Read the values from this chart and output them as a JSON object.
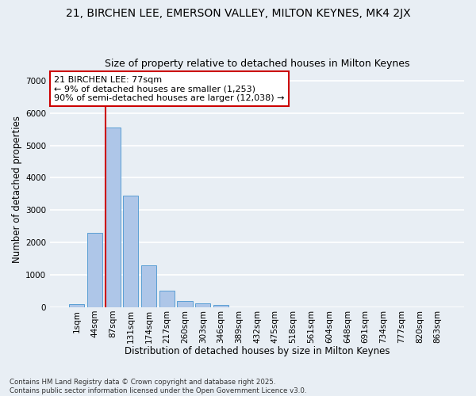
{
  "title": "21, BIRCHEN LEE, EMERSON VALLEY, MILTON KEYNES, MK4 2JX",
  "subtitle": "Size of property relative to detached houses in Milton Keynes",
  "xlabel": "Distribution of detached houses by size in Milton Keynes",
  "ylabel": "Number of detached properties",
  "categories": [
    "1sqm",
    "44sqm",
    "87sqm",
    "131sqm",
    "174sqm",
    "217sqm",
    "260sqm",
    "303sqm",
    "346sqm",
    "389sqm",
    "432sqm",
    "475sqm",
    "518sqm",
    "561sqm",
    "604sqm",
    "648sqm",
    "691sqm",
    "734sqm",
    "777sqm",
    "820sqm",
    "863sqm"
  ],
  "values": [
    100,
    2300,
    5550,
    3450,
    1300,
    500,
    200,
    130,
    70,
    10,
    0,
    0,
    0,
    0,
    0,
    0,
    0,
    0,
    0,
    0,
    0
  ],
  "bar_color": "#aec6e8",
  "bar_edge_color": "#5a9fd4",
  "vline_color": "#cc0000",
  "vline_x_index": 1.6,
  "annotation_text": "21 BIRCHEN LEE: 77sqm\n← 9% of detached houses are smaller (1,253)\n90% of semi-detached houses are larger (12,038) →",
  "annotation_box_color": "white",
  "annotation_box_edge_color": "#cc0000",
  "ylim": [
    0,
    7300
  ],
  "yticks": [
    0,
    1000,
    2000,
    3000,
    4000,
    5000,
    6000,
    7000
  ],
  "background_color": "#e8eef4",
  "grid_color": "white",
  "footnote": "Contains HM Land Registry data © Crown copyright and database right 2025.\nContains public sector information licensed under the Open Government Licence v3.0.",
  "title_fontsize": 10,
  "subtitle_fontsize": 9,
  "label_fontsize": 8.5,
  "tick_fontsize": 7.5,
  "annotation_fontsize": 8
}
